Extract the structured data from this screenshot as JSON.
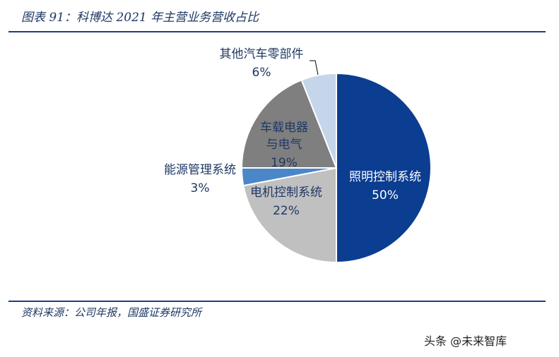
{
  "header": {
    "title": "图表 91：科博达 2021 年主营业务营收占比"
  },
  "footer": {
    "source": "资料来源：公司年报，国盛证券研究所"
  },
  "watermark": {
    "text": "头条 @未来智库",
    "sub_text": "未来智库"
  },
  "colors": {
    "rule": "#1f3c88",
    "text": "#1f3864"
  },
  "chart_data": {
    "type": "pie",
    "title": "",
    "slices": [
      {
        "name": "照明控制系统",
        "value": 50,
        "pct_label": "50%",
        "color": "#0b3d91",
        "label_color": "#ffffff"
      },
      {
        "name": "电机控制系统",
        "value": 22,
        "pct_label": "22%",
        "color": "#c0c0c0",
        "label_color": "#1f3864"
      },
      {
        "name": "能源管理系统",
        "value": 3,
        "pct_label": "3%",
        "color": "#4a86c8",
        "label_color": "#1f3864"
      },
      {
        "name": "车载电器与电气",
        "name_lines": [
          "车载电器",
          "与电气"
        ],
        "value": 19,
        "pct_label": "19%",
        "color": "#7f7f7f",
        "label_color": "#1f3864"
      },
      {
        "name": "其他汽车零部件",
        "value": 6,
        "pct_label": "6%",
        "color": "#c5d5ea",
        "label_color": "#1f3864"
      }
    ]
  }
}
